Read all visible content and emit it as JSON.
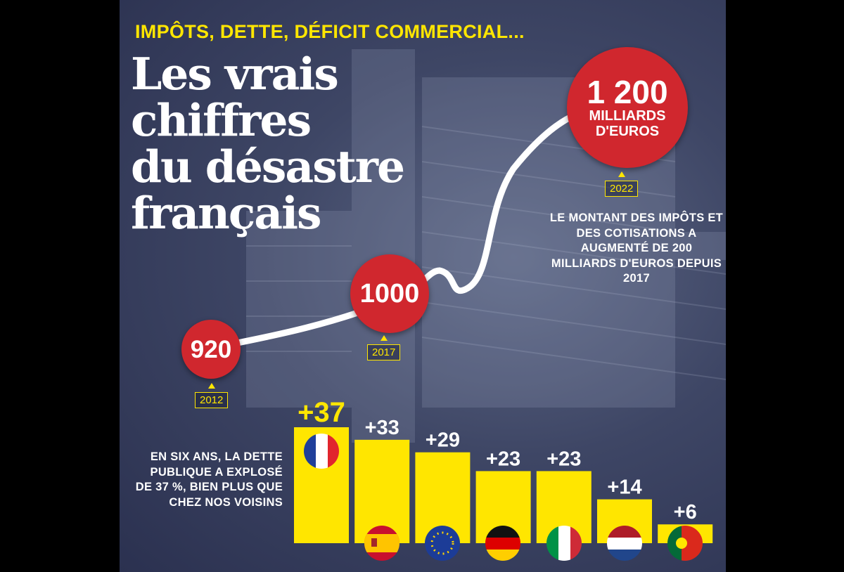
{
  "kicker": "IMPÔTS, DETTE, DÉFICIT COMMERCIAL...",
  "headline": [
    "Les vrais",
    "chiffres",
    "du désastre",
    "français"
  ],
  "tax_points": [
    {
      "year": "2012",
      "label": "920",
      "unit": ""
    },
    {
      "year": "2017",
      "label": "1000",
      "unit": ""
    },
    {
      "year": "2022",
      "label": "1 200",
      "unit": "MILLIARDS D'EUROS"
    }
  ],
  "tax_note": "LE MONTANT DES IMPÔTS ET DES COTISATIONS A AUGMENTÉ DE 200 MILLIARDS D'EUROS DEPUIS 2017",
  "debt_note": "EN SIX ANS, LA DETTE PUBLIQUE A EXPLOSÉ DE 37 %, BIEN PLUS QUE CHEZ NOS VOISINS",
  "colors": {
    "accent": "#ffe600",
    "circle": "#d0272e",
    "curve": "#ffffff"
  },
  "chart_data": [
    {
      "type": "line",
      "title": "",
      "x": [
        2012,
        2017,
        2022
      ],
      "values": [
        920,
        1000,
        1200
      ],
      "labels": [
        "920",
        "1000",
        "1 200"
      ],
      "unit": "MILLIARDS D'EUROS"
    },
    {
      "type": "bar",
      "categories": [
        "France",
        "Espagne",
        "Union européenne",
        "Allemagne",
        "Italie",
        "Pays-Bas",
        "Portugal"
      ],
      "flag_icons": [
        "flag-france-icon",
        "flag-spain-icon",
        "flag-eu-icon",
        "flag-germany-icon",
        "flag-italy-icon",
        "flag-netherlands-icon",
        "flag-portugal-icon"
      ],
      "values": [
        37,
        33,
        29,
        23,
        23,
        14,
        6
      ],
      "labels": [
        "+37",
        "+33",
        "+29",
        "+23",
        "+23",
        "+14",
        "+6"
      ],
      "ylim": [
        0,
        37
      ]
    }
  ]
}
